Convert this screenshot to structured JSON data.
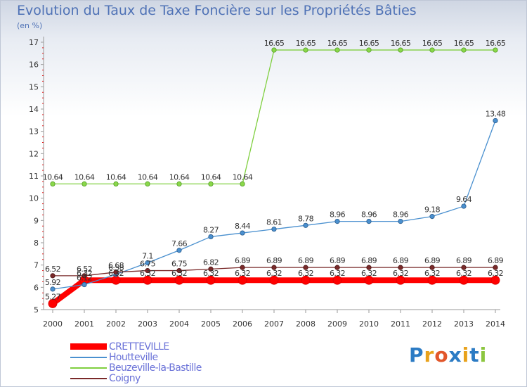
{
  "title": "Evolution du Taux de Taxe Foncière sur les Propriétés Bâties",
  "subtitle": "(en %)",
  "brand": {
    "text": "Proxiti",
    "letter_colors": [
      "#2b7bc4",
      "#e8a21c",
      "#e2572b",
      "#2b7bc4",
      "#e8a21c",
      "#2b7bc4",
      "#8cc63f"
    ]
  },
  "chart_data": {
    "type": "line",
    "title": "Evolution du Taux de Taxe Foncière sur les Propriétés Bâties",
    "ylabel": "(en %)",
    "xlabel": "",
    "categories": [
      "2000",
      "2001",
      "2002",
      "2003",
      "2004",
      "2005",
      "2006",
      "2007",
      "2008",
      "2009",
      "2010",
      "2011",
      "2012",
      "2013",
      "2014"
    ],
    "ylim": [
      5,
      17
    ],
    "yticks": [
      "5",
      "6",
      "7",
      "8",
      "9",
      "10",
      "11",
      "12",
      "13",
      "14",
      "15",
      "16",
      "17"
    ],
    "grid": false,
    "legend_position": "bottom-left",
    "series": [
      {
        "name": "CRETTEVILLE",
        "color": "#ff0000",
        "values": [
          5.27,
          6.32,
          6.32,
          6.32,
          6.32,
          6.32,
          6.32,
          6.32,
          6.32,
          6.32,
          6.32,
          6.32,
          6.32,
          6.32,
          6.32
        ],
        "labels": [
          "5.27",
          "6.32",
          "6.32",
          "6.32",
          "6.32",
          "6.32",
          "6.32",
          "6.32",
          "6.32",
          "6.32",
          "6.32",
          "6.32",
          "6.32",
          "6.32",
          "6.32"
        ]
      },
      {
        "name": "Houtteville",
        "color": "#4a90cf",
        "values": [
          5.92,
          6.12,
          6.58,
          7.1,
          7.66,
          8.27,
          8.44,
          8.61,
          8.78,
          8.96,
          8.96,
          8.96,
          9.18,
          9.64,
          13.48
        ],
        "labels": [
          "5.92",
          "6.12",
          "6.58",
          "7.1",
          "7.66",
          "8.27",
          "8.44",
          "8.61",
          "8.78",
          "8.96",
          "8.96",
          "8.96",
          "9.18",
          "9.64",
          "13.48"
        ]
      },
      {
        "name": "Beuzeville-la-Bastille",
        "color": "#7fcf3f",
        "values": [
          10.64,
          10.64,
          10.64,
          10.64,
          10.64,
          10.64,
          10.64,
          16.65,
          16.65,
          16.65,
          16.65,
          16.65,
          16.65,
          16.65,
          16.65
        ],
        "labels": [
          "10.64",
          "10.64",
          "10.64",
          "10.64",
          "10.64",
          "10.64",
          "10.64",
          "16.65",
          "16.65",
          "16.65",
          "16.65",
          "16.65",
          "16.65",
          "16.65",
          "16.65"
        ]
      },
      {
        "name": "Coigny",
        "color": "#7a2a2a",
        "values": [
          6.52,
          6.52,
          6.68,
          6.75,
          6.75,
          6.82,
          6.89,
          6.89,
          6.89,
          6.89,
          6.89,
          6.89,
          6.89,
          6.89,
          6.89
        ],
        "labels": [
          "6.52",
          "6.52",
          "6.68",
          "6.75",
          "6.75",
          "6.82",
          "6.89",
          "6.89",
          "6.89",
          "6.89",
          "6.89",
          "6.89",
          "6.89",
          "6.89",
          "6.89"
        ]
      }
    ]
  }
}
